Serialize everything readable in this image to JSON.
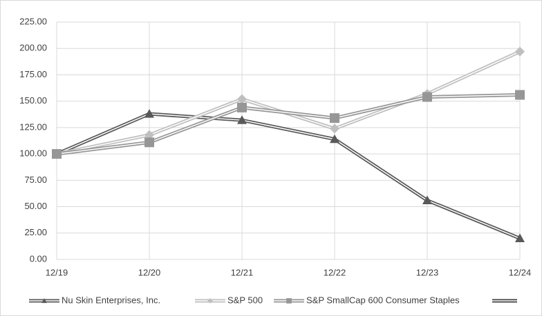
{
  "chart_data": {
    "type": "line",
    "categories": [
      "12/19",
      "12/20",
      "12/21",
      "12/22",
      "12/23",
      "12/24"
    ],
    "series": [
      {
        "name": "Nu Skin Enterprises, Inc.",
        "color": "#595959",
        "marker": "triangle",
        "values": [
          100,
          138,
          132,
          114,
          56,
          20
        ]
      },
      {
        "name": "S&P 500",
        "color": "#bfbfbf",
        "marker": "diamond",
        "values": [
          100,
          118,
          152,
          124,
          157,
          197
        ]
      },
      {
        "name": "S&P SmallCap 600 Consumer Staples",
        "color": "#969696",
        "marker": "square",
        "values": [
          100,
          111,
          144,
          134,
          154,
          156
        ]
      }
    ],
    "ylim": [
      0,
      225
    ],
    "yticks": [
      {
        "value": 0,
        "label": "0.00"
      },
      {
        "value": 25,
        "label": "25.00"
      },
      {
        "value": 50,
        "label": "50.00"
      },
      {
        "value": 75,
        "label": "75.00"
      },
      {
        "value": 100,
        "label": "100.00"
      },
      {
        "value": 125,
        "label": "125.00"
      },
      {
        "value": 150,
        "label": "150.00"
      },
      {
        "value": 175,
        "label": "175.00"
      },
      {
        "value": 200,
        "label": "200.00"
      },
      {
        "value": 225,
        "label": "225.00"
      }
    ],
    "grid": true,
    "legend": "bottom"
  }
}
